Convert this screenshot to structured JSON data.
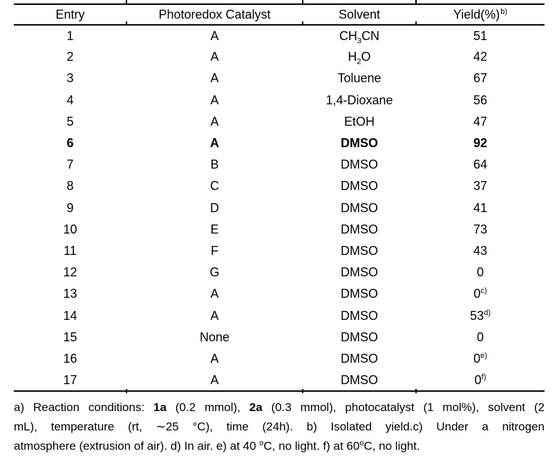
{
  "colors": {
    "background": "#ffffff",
    "text": "#000000",
    "rule": "#000000"
  },
  "table": {
    "headers": {
      "entry": "Entry",
      "catalyst": "Photoredox Catalyst",
      "solvent": "Solvent",
      "yield": "Yield(%)",
      "yield_sup": "b)"
    },
    "rows": [
      {
        "entry": "1",
        "catalyst": "A",
        "solvent": [
          {
            "t": "CH"
          },
          {
            "t": "3",
            "sub": true
          },
          {
            "t": "CN"
          }
        ],
        "yield": [
          {
            "t": "51"
          }
        ]
      },
      {
        "entry": "2",
        "catalyst": "A",
        "solvent": [
          {
            "t": "H"
          },
          {
            "t": "2",
            "sub": true
          },
          {
            "t": "O"
          }
        ],
        "yield": [
          {
            "t": "42"
          }
        ]
      },
      {
        "entry": "3",
        "catalyst": "A",
        "solvent": [
          {
            "t": "Toluene"
          }
        ],
        "yield": [
          {
            "t": "67"
          }
        ]
      },
      {
        "entry": "4",
        "catalyst": "A",
        "solvent": [
          {
            "t": "1,4-Dioxane"
          }
        ],
        "yield": [
          {
            "t": "56"
          }
        ]
      },
      {
        "entry": "5",
        "catalyst": "A",
        "solvent": [
          {
            "t": "EtOH"
          }
        ],
        "yield": [
          {
            "t": "47"
          }
        ]
      },
      {
        "entry": "6",
        "catalyst": "A",
        "solvent": [
          {
            "t": "DMSO"
          }
        ],
        "yield": [
          {
            "t": "92"
          }
        ],
        "bold": true
      },
      {
        "entry": "7",
        "catalyst": "B",
        "solvent": [
          {
            "t": "DMSO"
          }
        ],
        "yield": [
          {
            "t": "64"
          }
        ]
      },
      {
        "entry": "8",
        "catalyst": "C",
        "solvent": [
          {
            "t": "DMSO"
          }
        ],
        "yield": [
          {
            "t": "37"
          }
        ]
      },
      {
        "entry": "9",
        "catalyst": "D",
        "solvent": [
          {
            "t": "DMSO"
          }
        ],
        "yield": [
          {
            "t": "41"
          }
        ]
      },
      {
        "entry": "10",
        "catalyst": "E",
        "solvent": [
          {
            "t": "DMSO"
          }
        ],
        "yield": [
          {
            "t": "73"
          }
        ]
      },
      {
        "entry": "11",
        "catalyst": "F",
        "solvent": [
          {
            "t": "DMSO"
          }
        ],
        "yield": [
          {
            "t": "43"
          }
        ]
      },
      {
        "entry": "12",
        "catalyst": "G",
        "solvent": [
          {
            "t": "DMSO"
          }
        ],
        "yield": [
          {
            "t": "0"
          }
        ]
      },
      {
        "entry": "13",
        "catalyst": "A",
        "solvent": [
          {
            "t": "DMSO"
          }
        ],
        "yield": [
          {
            "t": "0"
          },
          {
            "t": "c)",
            "sup": true
          }
        ]
      },
      {
        "entry": "14",
        "catalyst": "A",
        "solvent": [
          {
            "t": "DMSO"
          }
        ],
        "yield": [
          {
            "t": "53"
          },
          {
            "t": "d)",
            "sup": true
          }
        ]
      },
      {
        "entry": "15",
        "catalyst": "None",
        "solvent": [
          {
            "t": "DMSO"
          }
        ],
        "yield": [
          {
            "t": "0"
          }
        ]
      },
      {
        "entry": "16",
        "catalyst": "A",
        "solvent": [
          {
            "t": "DMSO"
          }
        ],
        "yield": [
          {
            "t": "0"
          },
          {
            "t": "e)",
            "sup": true
          }
        ]
      },
      {
        "entry": "17",
        "catalyst": "A",
        "solvent": [
          {
            "t": "DMSO"
          }
        ],
        "yield": [
          {
            "t": "0"
          },
          {
            "t": "f)",
            "sup": true
          }
        ]
      }
    ]
  },
  "footnotes": {
    "lines": [
      {
        "align": "justify",
        "segments": [
          {
            "t": "a) Reaction conditions: "
          },
          {
            "t": "1a",
            "b": true
          },
          {
            "t": " (0.2 mmol), "
          },
          {
            "t": "2a",
            "b": true
          },
          {
            "t": " (0.3 mmol), photocatalyst (1 mol%), solvent (2"
          }
        ]
      },
      {
        "align": "justify",
        "segments": [
          {
            "t": "mL), temperature (rt, ∼25 °C), time (24h). b) Isolated yield.c) Under a nitrogen"
          }
        ]
      },
      {
        "align": "left",
        "segments": [
          {
            "t": "atmosphere (extrusion of air). d) In air. e) at 40 "
          },
          {
            "t": "o",
            "sup": true
          },
          {
            "t": "C, no light. f) at 60"
          },
          {
            "t": "o",
            "sup": true
          },
          {
            "t": "C, no light."
          }
        ]
      }
    ]
  }
}
